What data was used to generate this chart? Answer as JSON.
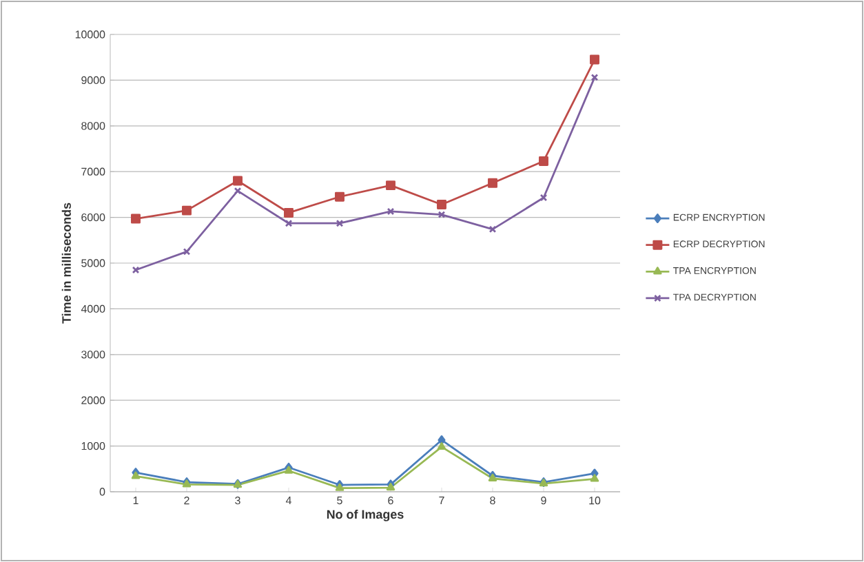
{
  "chart_data": {
    "type": "line",
    "xlabel": "No of Images",
    "ylabel": "Time in milliseconds",
    "categories": [
      "1",
      "2",
      "3",
      "4",
      "5",
      "6",
      "7",
      "8",
      "9",
      "10"
    ],
    "series": [
      {
        "name": "ECRP ENCRYPTION",
        "color": "#4a7ebb",
        "marker": "diamond",
        "values": [
          420,
          210,
          170,
          530,
          150,
          160,
          1130,
          350,
          210,
          400
        ]
      },
      {
        "name": "ECRP DECRYPTION",
        "color": "#be4b48",
        "marker": "square",
        "values": [
          5970,
          6150,
          6800,
          6100,
          6450,
          6700,
          6280,
          6750,
          7230,
          9450
        ]
      },
      {
        "name": "TPA ENCRYPTION",
        "color": "#98b954",
        "marker": "triangle",
        "values": [
          340,
          160,
          150,
          460,
          80,
          90,
          980,
          290,
          180,
          280
        ]
      },
      {
        "name": "TPA DECRYPTION",
        "color": "#7d60a0",
        "marker": "cross",
        "values": [
          4850,
          5250,
          6580,
          5870,
          5870,
          6130,
          6060,
          5740,
          6430,
          9060
        ]
      }
    ],
    "ylim": [
      0,
      10000
    ],
    "yticks": [
      0,
      1000,
      2000,
      3000,
      4000,
      5000,
      6000,
      7000,
      8000,
      9000,
      10000
    ],
    "grid": "y",
    "legend": "right",
    "line_style": "solid"
  }
}
